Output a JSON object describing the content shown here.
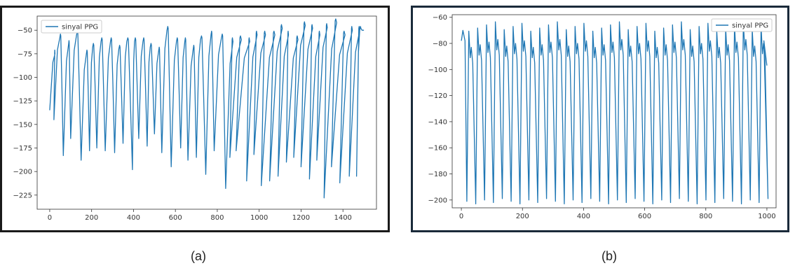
{
  "chart_data": [
    {
      "type": "line",
      "panel": "a",
      "legend": "sinyal PPG",
      "legend_position": "top-left",
      "grid": false,
      "color": "#1f77b4",
      "xlim": [
        -60,
        1560
      ],
      "ylim": [
        -240,
        -35
      ],
      "xticks": [
        0,
        200,
        400,
        600,
        800,
        1000,
        1200,
        1400
      ],
      "yticks": [
        -50,
        -75,
        -100,
        -125,
        -150,
        -175,
        -200,
        -225
      ],
      "ytick_labels": [
        "−50",
        "−75",
        "−100",
        "−125",
        "−150",
        "−175",
        "−200",
        "−225"
      ],
      "xtick_labels": [
        "0",
        "200",
        "400",
        "600",
        "800",
        "1000",
        "1200",
        "1400"
      ],
      "series": [
        {
          "name": "sinyal PPG",
          "peaks": [
            [
              25,
              -75
            ],
            [
              48,
              -58
            ],
            [
              90,
              -65
            ],
            [
              128,
              -55
            ],
            [
              175,
              -75
            ],
            [
              205,
              -68
            ],
            [
              245,
              -62
            ],
            [
              290,
              -62
            ],
            [
              330,
              -70
            ],
            [
              368,
              -62
            ],
            [
              405,
              -62
            ],
            [
              445,
              -62
            ],
            [
              480,
              -68
            ],
            [
              520,
              -72
            ],
            [
              560,
              -50
            ],
            [
              605,
              -62
            ],
            [
              645,
              -62
            ],
            [
              685,
              -70
            ],
            [
              720,
              -60
            ],
            [
              770,
              -55
            ],
            [
              820,
              -58
            ],
            [
              875,
              -62
            ],
            [
              915,
              -60
            ],
            [
              955,
              -62
            ],
            [
              990,
              -55
            ],
            [
              1030,
              -55
            ],
            [
              1075,
              -55
            ],
            [
              1110,
              -48
            ],
            [
              1140,
              -55
            ],
            [
              1185,
              -60
            ],
            [
              1220,
              -45
            ],
            [
              1255,
              -48
            ],
            [
              1290,
              -55
            ],
            [
              1325,
              -47
            ],
            [
              1370,
              -42
            ],
            [
              1410,
              -55
            ],
            [
              1445,
              -50
            ],
            [
              1480,
              -50
            ]
          ],
          "troughs": [
            [
              0,
              -135
            ],
            [
              20,
              -145
            ],
            [
              65,
              -183
            ],
            [
              100,
              -165
            ],
            [
              150,
              -188
            ],
            [
              190,
              -178
            ],
            [
              225,
              -175
            ],
            [
              265,
              -178
            ],
            [
              310,
              -180
            ],
            [
              350,
              -170
            ],
            [
              395,
              -198
            ],
            [
              425,
              -165
            ],
            [
              465,
              -173
            ],
            [
              500,
              -160
            ],
            [
              535,
              -180
            ],
            [
              580,
              -195
            ],
            [
              625,
              -175
            ],
            [
              660,
              -188
            ],
            [
              700,
              -185
            ],
            [
              745,
              -203
            ],
            [
              785,
              -178
            ],
            [
              840,
              -218
            ],
            [
              860,
              -185
            ],
            [
              890,
              -178
            ],
            [
              940,
              -210
            ],
            [
              975,
              -182
            ],
            [
              1010,
              -215
            ],
            [
              1050,
              -210
            ],
            [
              1090,
              -205
            ],
            [
              1130,
              -190
            ],
            [
              1165,
              -185
            ],
            [
              1200,
              -195
            ],
            [
              1240,
              -208
            ],
            [
              1275,
              -188
            ],
            [
              1310,
              -228
            ],
            [
              1345,
              -195
            ],
            [
              1385,
              -212
            ],
            [
              1430,
              -205
            ],
            [
              1465,
              -205
            ],
            [
              1500,
              -50
            ]
          ]
        }
      ]
    },
    {
      "type": "line",
      "panel": "b",
      "legend": "sinyal PPG",
      "legend_position": "top-right",
      "grid": false,
      "color": "#1f77b4",
      "xlim": [
        -30,
        1030
      ],
      "ylim": [
        -206,
        -58
      ],
      "xticks": [
        0,
        200,
        400,
        600,
        800,
        1000
      ],
      "yticks": [
        -60,
        -80,
        -100,
        -120,
        -140,
        -160,
        -180,
        -200
      ],
      "ytick_labels": [
        "−60",
        "−80",
        "−100",
        "−120",
        "−140",
        "−160",
        "−180",
        "−200"
      ],
      "xtick_labels": [
        "0",
        "200",
        "400",
        "600",
        "800",
        "1000"
      ],
      "series": [
        {
          "name": "sinyal PPG",
          "cycle_count": 35,
          "baseline_values": {
            "peak": -67,
            "notch": -88,
            "secondary": -80,
            "trough": -201
          }
        }
      ]
    }
  ],
  "captions": {
    "a": "(a)",
    "b": "(b)"
  }
}
